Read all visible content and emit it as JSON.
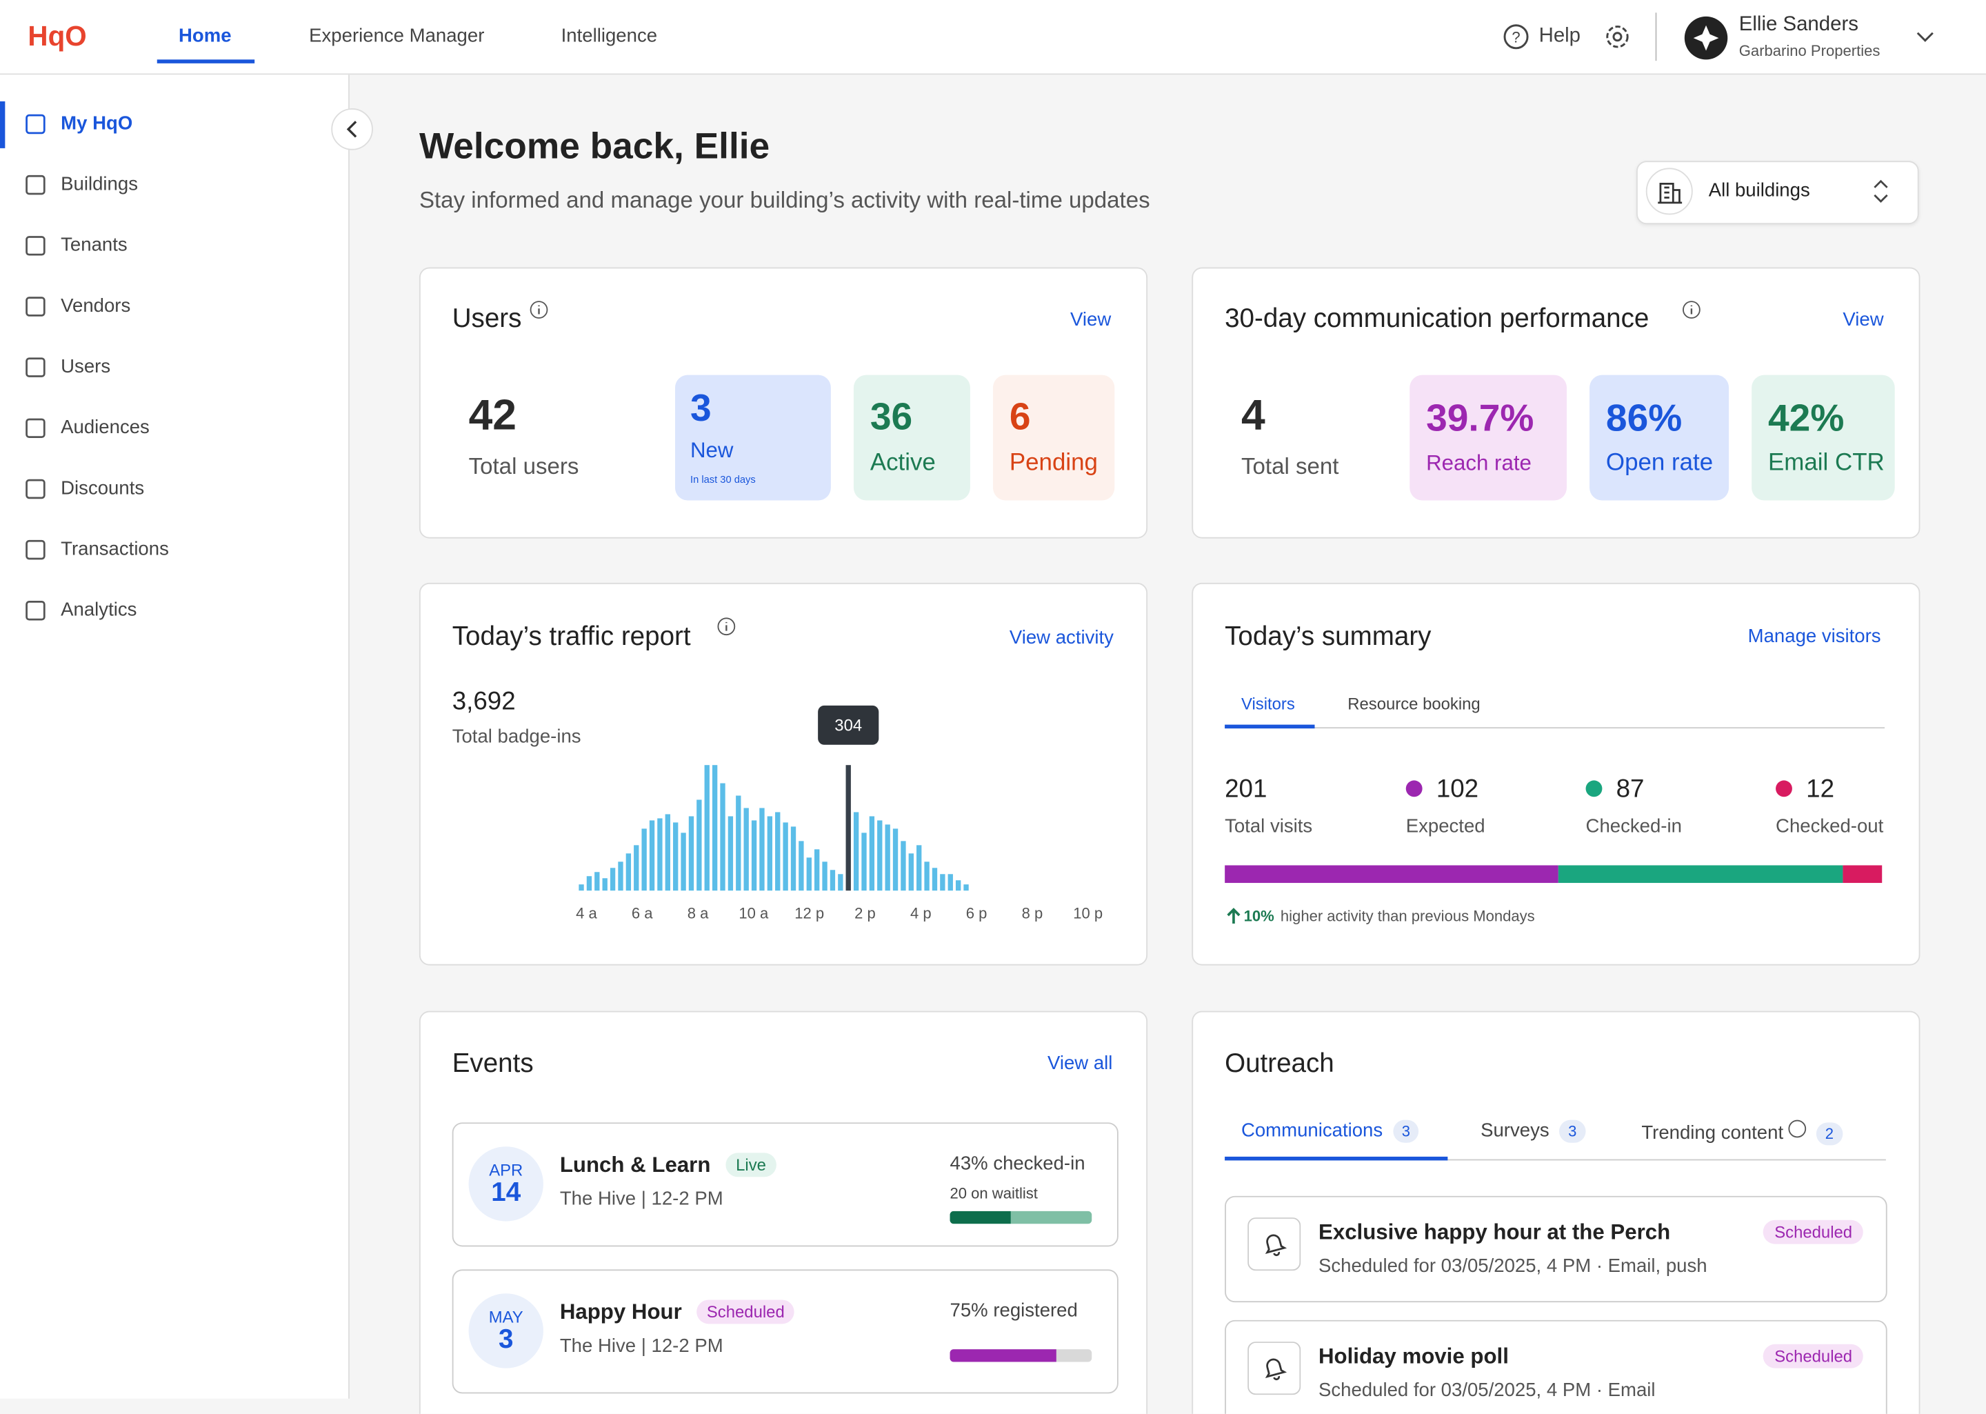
{
  "brand": "HqO",
  "nav": [
    "Home",
    "Experience Manager",
    "Intelligence"
  ],
  "header": {
    "help": "Help",
    "user_name": "Ellie Sanders",
    "user_org": "Garbarino Properties"
  },
  "sidebar": [
    "My HqO",
    "Buildings",
    "Tenants",
    "Vendors",
    "Users",
    "Audiences",
    "Discounts",
    "Transactions",
    "Analytics"
  ],
  "welcome": {
    "title": "Welcome back, Ellie",
    "subtitle": "Stay informed and manage your building’s activity with real-time updates",
    "building_select": "All buildings"
  },
  "users": {
    "title": "Users",
    "link": "View",
    "total": "42",
    "total_label": "Total users",
    "new": "3",
    "new_label": "New",
    "new_note": "In last 30 days",
    "active": "36",
    "active_label": "Active",
    "pending": "6",
    "pending_label": "Pending"
  },
  "communication": {
    "title": "30-day communication performance",
    "link": "View",
    "total": "4",
    "total_label": "Total sent",
    "reach": "39.7%",
    "reach_label": "Reach rate",
    "open": "86%",
    "open_label": "Open rate",
    "ctr": "42%",
    "ctr_label": "Email CTR"
  },
  "traffic": {
    "title": "Today’s traffic report",
    "link": "View activity",
    "total": "3,692",
    "total_label": "Total badge-ins",
    "chart": {
      "type": "bar",
      "color": "#5bbde8",
      "highlight_color": "#37404a",
      "values": [
        15,
        35,
        45,
        30,
        55,
        70,
        90,
        110,
        150,
        170,
        175,
        185,
        165,
        140,
        180,
        220,
        304,
        304,
        260,
        180,
        230,
        200,
        170,
        200,
        180,
        190,
        165,
        155,
        120,
        80,
        100,
        70,
        50,
        40,
        304,
        190,
        140,
        180,
        170,
        160,
        150,
        120,
        90,
        110,
        70,
        55,
        40,
        40,
        25,
        15
      ],
      "xlabels": [
        "4 a",
        "6 a",
        "8 a",
        "10 a",
        "12 p",
        "2 p",
        "4 p",
        "6 p",
        "8 p",
        "10 p"
      ]
    }
  },
  "summary": {
    "title": "Today’s summary",
    "link": "Manage visitors",
    "tabs": [
      "Visitors",
      "Resource booking"
    ],
    "total": 201,
    "total_label": "Total visits",
    "series": [
      {
        "name": "Expected",
        "value": 102,
        "color": "#9c27b0"
      },
      {
        "name": "Checked-in",
        "value": 87,
        "color": "#1aa67f"
      },
      {
        "name": "Checked-out",
        "value": 12,
        "color": "#d81b60"
      }
    ],
    "trend": "10%",
    "trend_text": "higher activity than previous Mondays"
  },
  "events": {
    "title": "Events",
    "link": "View all",
    "items": [
      {
        "month": "APR",
        "day": "14",
        "name": "Lunch & Learn",
        "status": "Live",
        "place": "The Hive | 12-2 PM",
        "progress_label": "43% checked-in",
        "note": "20 on waitlist",
        "progress": 43
      },
      {
        "month": "MAY",
        "day": "3",
        "name": "Happy Hour",
        "status": "Scheduled",
        "place": "The Hive | 12-2 PM",
        "progress_label": "75% registered",
        "progress": 75
      }
    ]
  },
  "outreach": {
    "title": "Outreach",
    "tabs": [
      {
        "label": "Communications",
        "count": "3"
      },
      {
        "label": "Surveys",
        "count": "3"
      },
      {
        "label": "Trending content",
        "count": "2"
      }
    ],
    "items": [
      {
        "title": "Exclusive happy hour at the Perch",
        "status": "Scheduled",
        "detail": "Scheduled for 03/05/2025, 4 PM · Email, push"
      },
      {
        "title": "Holiday movie poll",
        "status": "Scheduled",
        "detail": "Scheduled for 03/05/2025, 4 PM · Email"
      }
    ]
  }
}
